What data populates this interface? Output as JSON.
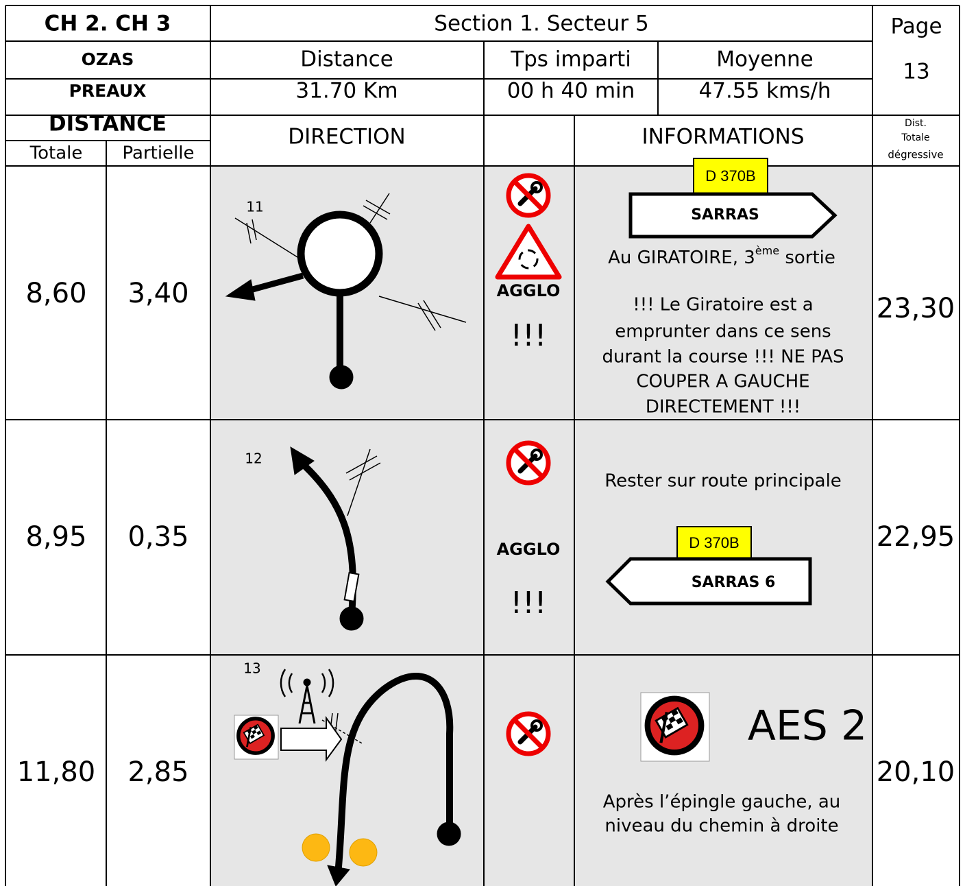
{
  "header": {
    "chapter": "CH 2. CH 3",
    "section": "Section 1. Secteur 5",
    "page_label": "Page",
    "page": "13",
    "start": "OZAS",
    "end": "PREAUX",
    "distance_label": "Distance",
    "distance": "31.70 Km",
    "time_label": "Tps imparti",
    "time": "00 h 40 min",
    "average_label": "Moyenne",
    "average": "47.55 kms/h"
  },
  "columns": {
    "distance": "DISTANCE",
    "total": "Totale",
    "partial": "Partielle",
    "direction": "DIRECTION",
    "informations": "INFORMATIONS",
    "remaining": [
      "Dist.",
      "Totale",
      "dégressive"
    ]
  },
  "rows": [
    {
      "number": "11",
      "total": "8,60",
      "partial": "3,40",
      "agglo": "AGGLO",
      "warning": "!!!",
      "road": "D 370B",
      "sign": "SARRAS",
      "instruction": [
        "Au GIRATOIRE, 3",
        "ème",
        " sortie"
      ],
      "note": [
        "!!! Le Giratoire est a",
        "emprunter dans ce sens",
        "durant la course !!! NE PAS",
        "COUPER A GAUCHE",
        "DIRECTEMENT !!!"
      ],
      "remaining": "23,30"
    },
    {
      "number": "12",
      "total": "8,95",
      "partial": "0,35",
      "agglo": "AGGLO",
      "warning": "!!!",
      "instruction": "Rester sur route principale",
      "road": "D 370B",
      "sign": "SARRAS 6",
      "remaining": "22,95"
    },
    {
      "number": "13",
      "total": "11,80",
      "partial": "2,85",
      "label": "AES 2",
      "note": [
        "Après l’épingle gauche, au",
        "niveau du chemin à droite"
      ],
      "remaining": "20,10"
    }
  ]
}
